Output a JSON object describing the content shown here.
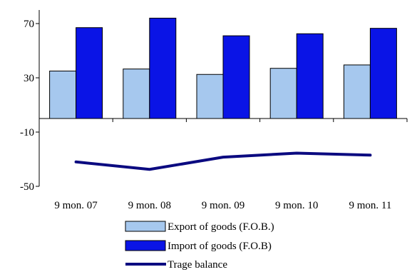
{
  "chart_data": {
    "type": "bar",
    "categories": [
      "9 mon. 07",
      "9 mon. 08",
      "9 mon. 09",
      "9 mon. 10",
      "9 mon. 11"
    ],
    "series": [
      {
        "name": "Export of goods (F.O.B.)",
        "type": "bar",
        "color": "#a6c8ee",
        "values": [
          35,
          36.5,
          32.5,
          37,
          39.5
        ]
      },
      {
        "name": "Import of goods (F.O.B)",
        "type": "bar",
        "color": "#0a14e6",
        "values": [
          67,
          74,
          61,
          62.5,
          66.5
        ]
      },
      {
        "name": "Trage balance",
        "type": "line",
        "color": "#0b0a80",
        "values": [
          -32,
          -37.5,
          -28.5,
          -25.5,
          -27
        ]
      }
    ],
    "ylim": [
      -50,
      80
    ],
    "yticks": [
      70,
      30,
      -10,
      -50
    ],
    "ytick_labels": [
      "70",
      "30",
      "-10",
      "-50"
    ],
    "title": "",
    "xlabel": "",
    "ylabel": "",
    "grid": false,
    "legend_position": "bottom"
  }
}
